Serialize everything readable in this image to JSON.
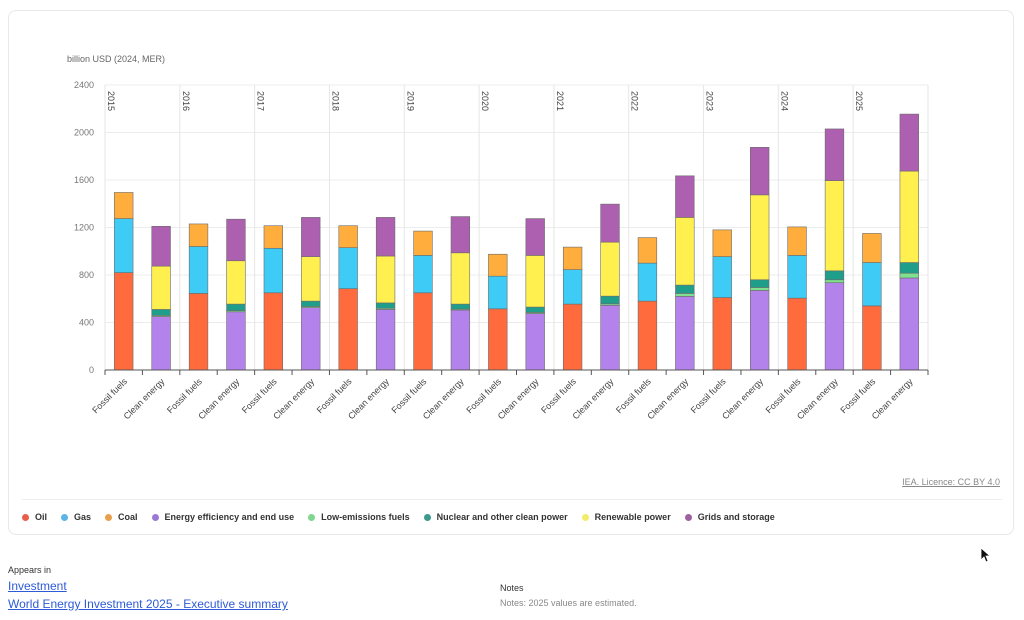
{
  "chart_data": {
    "type": "bar",
    "stacked": true,
    "ylabel": "billion USD (2024, MER)",
    "ylim": [
      0,
      2400
    ],
    "yticks": [
      0,
      400,
      800,
      1200,
      1600,
      2000,
      2400
    ],
    "grid": true,
    "legend_position": "bottom",
    "years": [
      "2015",
      "2016",
      "2017",
      "2018",
      "2019",
      "2020",
      "2021",
      "2022",
      "2023",
      "2024",
      "2025"
    ],
    "groups": [
      "Fossil fuels",
      "Clean energy"
    ],
    "series": [
      {
        "name": "Oil",
        "group": "Fossil fuels",
        "color": "#ff6b3d",
        "values": [
          820,
          645,
          650,
          685,
          650,
          515,
          555,
          580,
          610,
          605,
          540
        ]
      },
      {
        "name": "Gas",
        "group": "Fossil fuels",
        "color": "#3ecbf5",
        "values": [
          455,
          395,
          375,
          345,
          315,
          275,
          290,
          320,
          345,
          360,
          365
        ]
      },
      {
        "name": "Coal",
        "group": "Fossil fuels",
        "color": "#ffae3d",
        "values": [
          220,
          190,
          190,
          185,
          205,
          185,
          190,
          215,
          225,
          240,
          245
        ]
      },
      {
        "name": "Energy efficiency and end use",
        "group": "Clean energy",
        "color": "#b383eb",
        "values": [
          450,
          490,
          525,
          510,
          505,
          475,
          545,
          620,
          670,
          735,
          775
        ]
      },
      {
        "name": "Low-emissions fuels",
        "group": "Clean energy",
        "color": "#7fe08f",
        "values": [
          10,
          10,
          10,
          10,
          8,
          10,
          12,
          25,
          25,
          25,
          40
        ]
      },
      {
        "name": "Nuclear and other clean power",
        "group": "Clean energy",
        "color": "#1f9e8c",
        "values": [
          50,
          55,
          45,
          45,
          42,
          45,
          65,
          70,
          65,
          75,
          90
        ]
      },
      {
        "name": "Renewable power",
        "group": "Clean energy",
        "color": "#fff04f",
        "values": [
          365,
          365,
          375,
          395,
          432,
          435,
          455,
          570,
          715,
          760,
          770
        ]
      },
      {
        "name": "Grids and storage",
        "group": "Clean energy",
        "color": "#ad5fb0",
        "values": [
          335,
          350,
          330,
          325,
          305,
          310,
          320,
          350,
          400,
          435,
          480
        ]
      }
    ]
  },
  "legend": [
    {
      "label": "Oil",
      "color": "#e8604c"
    },
    {
      "label": "Gas",
      "color": "#5ab4e6"
    },
    {
      "label": "Coal",
      "color": "#e8a04c"
    },
    {
      "label": "Energy efficiency and end use",
      "color": "#9a78d6"
    },
    {
      "label": "Low-emissions fuels",
      "color": "#7fd68f"
    },
    {
      "label": "Nuclear and other clean power",
      "color": "#3a9a8c"
    },
    {
      "label": "Renewable power",
      "color": "#f3ec6a"
    },
    {
      "label": "Grids and storage",
      "color": "#a05fa0"
    }
  ],
  "licence": "IEA. Licence: CC BY 4.0",
  "appears_in": {
    "label": "Appears in",
    "links": [
      "Investment",
      "World Energy Investment 2025 - Executive summary"
    ]
  },
  "notes": {
    "title": "Notes",
    "text": "Notes: 2025 values are estimated."
  }
}
